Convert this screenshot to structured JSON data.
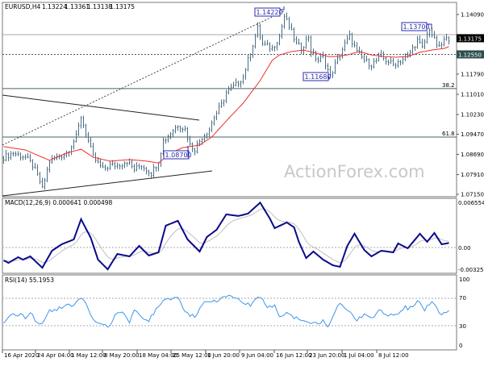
{
  "header": {
    "symbol": "EURUSD,H4",
    "open": "1.13224",
    "high": "1.13361",
    "low": "1.13138",
    "close": "1.13175"
  },
  "watermark": "ActionForex.com",
  "colors": {
    "bars": "#4d6f86",
    "ma": "#e8302a",
    "macd": "#0a0a8c",
    "signal": "#c0c0c0",
    "rsi": "#3d95f0",
    "price_tag": "#000000",
    "level_tag": "#2f4f4f",
    "label_box": "#2b2bb0"
  },
  "chart_data": [
    {
      "type": "line",
      "panel": "price",
      "title": "EURUSD,H4",
      "ylim": [
        1.0715,
        1.1409
      ],
      "y_tick_labels": [
        "1.14090",
        "1.11790",
        "1.11010",
        "1.10230",
        "1.09470",
        "1.08690",
        "1.07910",
        "1.07150"
      ],
      "x_tick_labels": [
        "16 Apr 2020",
        "24 Apr 04:00",
        "1 May 12:00",
        "8 May 20:00",
        "18 May 04:00",
        "25 May 12:00",
        "1 Jun 20:00",
        "9 Jun 04:00",
        "16 Jun 12:00",
        "23 Jun 20:00",
        "1 Jul 04:00",
        "8 Jul 12:00"
      ],
      "price_bars": {
        "bar_index": [
          0,
          4,
          9,
          12,
          15,
          16,
          19,
          22,
          26,
          30,
          32,
          35,
          37,
          41,
          44,
          47,
          51,
          54,
          57,
          61,
          64,
          66,
          69,
          72,
          75,
          77,
          79,
          82,
          85,
          87,
          90,
          92,
          96,
          99,
          102,
          105,
          107,
          111,
          114,
          116,
          119,
          121,
          123,
          126,
          127,
          130,
          132,
          135,
          137,
          141,
          143,
          146,
          149,
          152,
          156,
          158,
          161,
          164,
          167,
          171,
          173,
          176,
          178,
          180,
          182,
          184
        ],
        "close": [
          1.0858,
          1.0874,
          1.0858,
          1.0827,
          1.0765,
          1.0734,
          1.0843,
          1.0858,
          1.0874,
          1.0936,
          1.1014,
          1.092,
          1.0858,
          1.0811,
          1.0827,
          1.0827,
          1.0843,
          1.0811,
          1.0827,
          1.0796,
          1.0843,
          1.092,
          1.0951,
          1.0983,
          1.0967,
          1.0905,
          1.0889,
          1.0936,
          1.0967,
          1.1014,
          1.106,
          1.1107,
          1.1138,
          1.1169,
          1.1263,
          1.1356,
          1.1294,
          1.1278,
          1.1325,
          1.1403,
          1.1341,
          1.1294,
          1.1278,
          1.1325,
          1.1263,
          1.1232,
          1.1247,
          1.1169,
          1.1216,
          1.1294,
          1.1325,
          1.1263,
          1.1232,
          1.1216,
          1.1247,
          1.1232,
          1.1216,
          1.1232,
          1.1247,
          1.1309,
          1.1278,
          1.1356,
          1.1309,
          1.1278,
          1.1309,
          1.1318
        ]
      },
      "moving_average": {
        "bar_index": [
          0,
          9,
          16,
          19,
          26,
          32,
          37,
          44,
          52,
          59,
          64,
          69,
          74,
          81,
          86,
          92,
          99,
          106,
          111,
          114,
          119,
          124,
          129,
          134,
          137,
          142,
          147,
          152,
          157,
          162,
          167,
          172,
          177,
          182,
          184
        ],
        "value": [
          1.0899,
          1.0886,
          1.0858,
          1.0846,
          1.0874,
          1.0889,
          1.0858,
          1.0843,
          1.0849,
          1.0843,
          1.0836,
          1.0874,
          1.0895,
          1.0905,
          1.0936,
          1.0998,
          1.1067,
          1.1154,
          1.1232,
          1.1253,
          1.1266,
          1.1272,
          1.126,
          1.1247,
          1.1247,
          1.1253,
          1.1266,
          1.1253,
          1.1247,
          1.1244,
          1.1247,
          1.1263,
          1.1272,
          1.1278,
          1.1285
        ]
      },
      "current_price": "1.13175",
      "levels": [
        {
          "label": "1.12550",
          "value": 1.1255,
          "style": "dashed"
        },
        {
          "value": 1.1331,
          "style": "solid"
        }
      ],
      "fibonacci": [
        {
          "label": "38.2",
          "value": 1.1123
        },
        {
          "label": "61.8",
          "value": 1.0936
        }
      ],
      "annotations": [
        {
          "label": "1.14220",
          "value": 1.1422
        },
        {
          "label": "1.13700",
          "value": 1.137
        },
        {
          "label": "1.11680",
          "value": 1.1168
        },
        {
          "label": "1.08700",
          "value": 1.087
        }
      ]
    },
    {
      "type": "line",
      "panel": "macd",
      "title": "MACD(12,26,9) 0.000641 0.000498",
      "ylim": [
        -0.003259,
        0.006554
      ],
      "y_tick_labels": [
        "0.006554",
        "0.00",
        "-0.003259"
      ],
      "bar_index": [
        0,
        2,
        6,
        8,
        11,
        16,
        20,
        24,
        29,
        32,
        36,
        39,
        43,
        47,
        52,
        56,
        60,
        64,
        67,
        72,
        76,
        81,
        84,
        88,
        92,
        97,
        101,
        106,
        110,
        112,
        117,
        120,
        122,
        125,
        128,
        132,
        136,
        139,
        142,
        145,
        149,
        152,
        156,
        161,
        163,
        167,
        172,
        175,
        178,
        181,
        184
      ],
      "macd": [
        -0.00184,
        -0.00219,
        -0.00138,
        -0.00173,
        -0.00127,
        -0.00288,
        -0.00046,
        0.00046,
        0.00115,
        0.00403,
        0.00138,
        -0.00173,
        -0.00311,
        -0.00092,
        -0.00127,
        0.00023,
        -0.00115,
        -0.00069,
        0.00311,
        0.0038,
        0.00115,
        -0.00058,
        0.0015,
        0.00253,
        0.00472,
        0.00449,
        0.00483,
        0.0064,
        0.00414,
        0.00276,
        0.00357,
        0.00288,
        0.00081,
        -0.0015,
        -0.00058,
        -0.00173,
        -0.00253,
        -0.00276,
        0.00023,
        0.00196,
        -0.00035,
        -0.00127,
        -0.00046,
        -0.00069,
        0.00058,
        -0.00012,
        0.00196,
        0.00081,
        0.00207,
        0.00046,
        0.00064
      ],
      "signal_period": 9
    },
    {
      "type": "line",
      "panel": "rsi",
      "title": "RSI(14) 55.1953",
      "ylim": [
        0,
        100
      ],
      "y_tick_labels": [
        "100",
        "70",
        "30",
        "0"
      ],
      "bar_index": [
        0,
        3,
        6,
        9,
        11,
        14,
        16,
        19,
        22,
        26,
        29,
        32,
        34,
        37,
        41,
        44,
        46,
        49,
        52,
        54,
        57,
        60,
        62,
        65,
        69,
        72,
        76,
        79,
        82,
        86,
        89,
        94,
        99,
        102,
        106,
        109,
        112,
        114,
        117,
        121,
        124,
        127,
        129,
        132,
        134,
        136,
        139,
        142,
        146,
        149,
        152,
        156,
        159,
        162,
        166,
        167,
        170,
        172,
        174,
        177,
        181,
        184
      ],
      "rsi": [
        37,
        46,
        47,
        43,
        49,
        35,
        31,
        53,
        55,
        59,
        63,
        73,
        64,
        41,
        30,
        29,
        47,
        52,
        37,
        52,
        43,
        39,
        49,
        65,
        71,
        70,
        47,
        43,
        63,
        64,
        69,
        76,
        66,
        61,
        73,
        59,
        59,
        41,
        48,
        41,
        39,
        31,
        33,
        37,
        31,
        45,
        65,
        53,
        40,
        47,
        43,
        53,
        45,
        47,
        59,
        53,
        63,
        67,
        54,
        67,
        45,
        55
      ]
    }
  ]
}
